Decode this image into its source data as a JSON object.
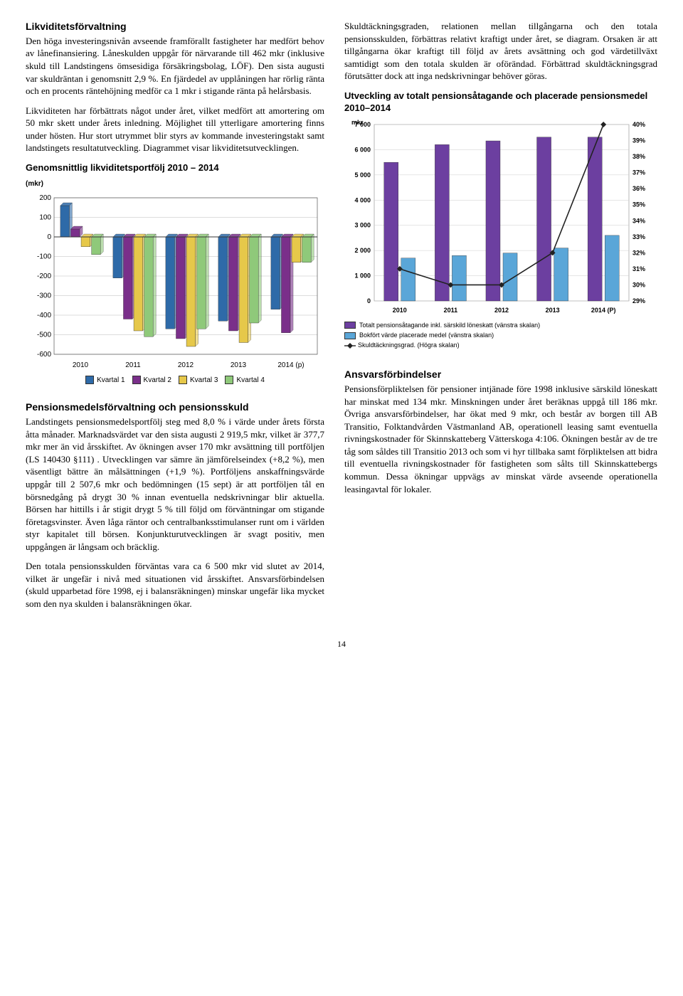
{
  "left": {
    "h1": "Likviditetsförvaltning",
    "p1": "Den höga investeringsnivån avseende framförallt fastigheter har medfört behov av lånefinansiering. Låneskulden uppgår för närvarande till 462 mkr (inklusive skuld till Landstingens ömsesidiga försäkringsbolag, LÖF). Den sista augusti var skuldräntan i genomsnitt 2,9 %. En fjärdedel av upplåningen har rörlig ränta och en procents räntehöjning medför ca 1 mkr i stigande ränta på helårsbasis.",
    "p2": "Likviditeten har förbättrats något under året, vilket medfört att amortering om 50 mkr skett under årets inledning. Möjlighet till ytterligare amortering finns under hösten. Hur stort utrymmet blir styrs av kommande investeringstakt samt landstingets resultatutveckling. Diagrammet visar likviditetsutvecklingen.",
    "chart1_title": "Genomsnittlig likviditetsportfölj 2010 – 2014",
    "chart1": {
      "y_label": "(mkr)",
      "ylim": [
        -600,
        200
      ],
      "ytick_step": 100,
      "categories": [
        "2010",
        "2011",
        "2012",
        "2013",
        "2014 (p)"
      ],
      "series": [
        {
          "name": "Kvartal 1",
          "color": "#2e6aa8",
          "values": [
            160,
            -210,
            -470,
            -430,
            -370
          ]
        },
        {
          "name": "Kvartal 2",
          "color": "#7a2f8a",
          "values": [
            40,
            -420,
            -520,
            -480,
            -490
          ]
        },
        {
          "name": "Kvartal 3",
          "color": "#e6c84a",
          "values": [
            -50,
            -480,
            -560,
            -540,
            -130
          ]
        },
        {
          "name": "Kvartal 4",
          "color": "#8fc97a",
          "values": [
            -90,
            -510,
            -470,
            -440,
            -130
          ]
        }
      ]
    },
    "legend1": [
      {
        "label": "Kvartal 1",
        "color": "#2e6aa8"
      },
      {
        "label": "Kvartal 2",
        "color": "#7a2f8a"
      },
      {
        "label": "Kvartal 3",
        "color": "#e6c84a"
      },
      {
        "label": "Kvartal 4",
        "color": "#8fc97a"
      }
    ],
    "h2": "Pensionsmedelsförvaltning och pensionsskuld",
    "p3": "Landstingets pensionsmedelsportfölj steg med 8,0 % i värde under årets första åtta månader. Marknadsvärdet var den sista augusti 2 919,5 mkr, vilket är 377,7 mkr mer än vid årsskiftet. Av ökningen avser 170 mkr avsättning till portföljen (LS 140430 §111) . Utvecklingen var sämre än jämförelseindex (+8,2 %), men väsentligt bättre än målsättningen (+1,9 %). Portföljens anskaffningsvärde uppgår till 2 507,6 mkr och bedömningen (15 sept) är att portföljen tål en börsnedgång på drygt 30 % innan eventuella nedskrivningar blir aktuella. Börsen har hittills i år stigit drygt 5 % till följd om förväntningar om stigande företagsvinster. Även låga räntor och centralbanksstimulanser runt om i världen styr kapitalet till börsen. Konjunkturutvecklingen är svagt positiv, men uppgången är långsam och bräcklig.",
    "p4": "Den totala pensionsskulden förväntas vara ca 6 500 mkr vid slutet av 2014, vilket är ungefär i nivå med situationen vid årsskiftet. Ansvarsförbindelsen (skuld upparbetad före 1998, ej i balansräkningen) minskar ungefär lika mycket som den nya skulden i balansräkningen ökar."
  },
  "right": {
    "p1": "Skuldtäckningsgraden, relationen mellan tillgångarna och den totala pensionsskulden, förbättras relativt kraftigt under året, se diagram. Orsaken är att tillgångarna ökar kraftigt till följd av årets avsättning och god värdetillväxt samtidigt som den totala skulden är oförändad. Förbättrad skuldtäckningsgrad förutsätter dock att inga nedskrivningar behöver göras.",
    "chart2_title": "Utveckling av totalt pensionsåtagande och placerade pensionsmedel 2010–2014",
    "chart2": {
      "y_label": "mkr",
      "ylim": [
        0,
        7000
      ],
      "ytick_step": 1000,
      "y2lim": [
        29,
        40
      ],
      "y2tick_step": 1,
      "categories": [
        "2010",
        "2011",
        "2012",
        "2013",
        "2014 (P)"
      ],
      "bars_purple": {
        "color": "#6c3fa0",
        "values": [
          5500,
          6200,
          6350,
          6500,
          6500
        ]
      },
      "bars_blue": {
        "color": "#5aa6d8",
        "values": [
          1700,
          1800,
          1900,
          2100,
          2600
        ]
      },
      "line": {
        "color": "#222",
        "values_pct": [
          31,
          30,
          30,
          32,
          40
        ]
      }
    },
    "legend2": [
      {
        "label": "Totalt pensionsåtagande inkl. särskild löneskatt (vänstra skalan)",
        "color": "#6c3fa0",
        "type": "box"
      },
      {
        "label": "Bokfört värde placerade medel (vänstra skalan)",
        "color": "#5aa6d8",
        "type": "box"
      },
      {
        "label": "Skuldtäckningsgrad. (Högra skalan)",
        "color": "#222",
        "type": "line"
      }
    ],
    "h2": "Ansvarsförbindelser",
    "p2": "Pensionsförpliktelsen för pensioner intjänade före 1998 inklusive särskild löneskatt har minskat med 134 mkr. Minskningen under året beräknas uppgå till 186 mkr. Övriga ansvarsförbindelser, har ökat med 9 mkr, och består av borgen till AB Transitio, Folktandvården Västmanland AB, operationell leasing samt eventuella rivningskostnader för Skinnskatteberg Vätterskoga 4:106. Ökningen består av de tre tåg som såldes till Transitio 2013 och som vi hyr tillbaka samt förpliktelsen att bidra till eventuella rivningskostnader för fastigheten som sålts till Skinnskattebergs kommun. Dessa ökningar uppvägs av minskat värde avseende operationella leasingavtal för lokaler."
  },
  "page": "14"
}
